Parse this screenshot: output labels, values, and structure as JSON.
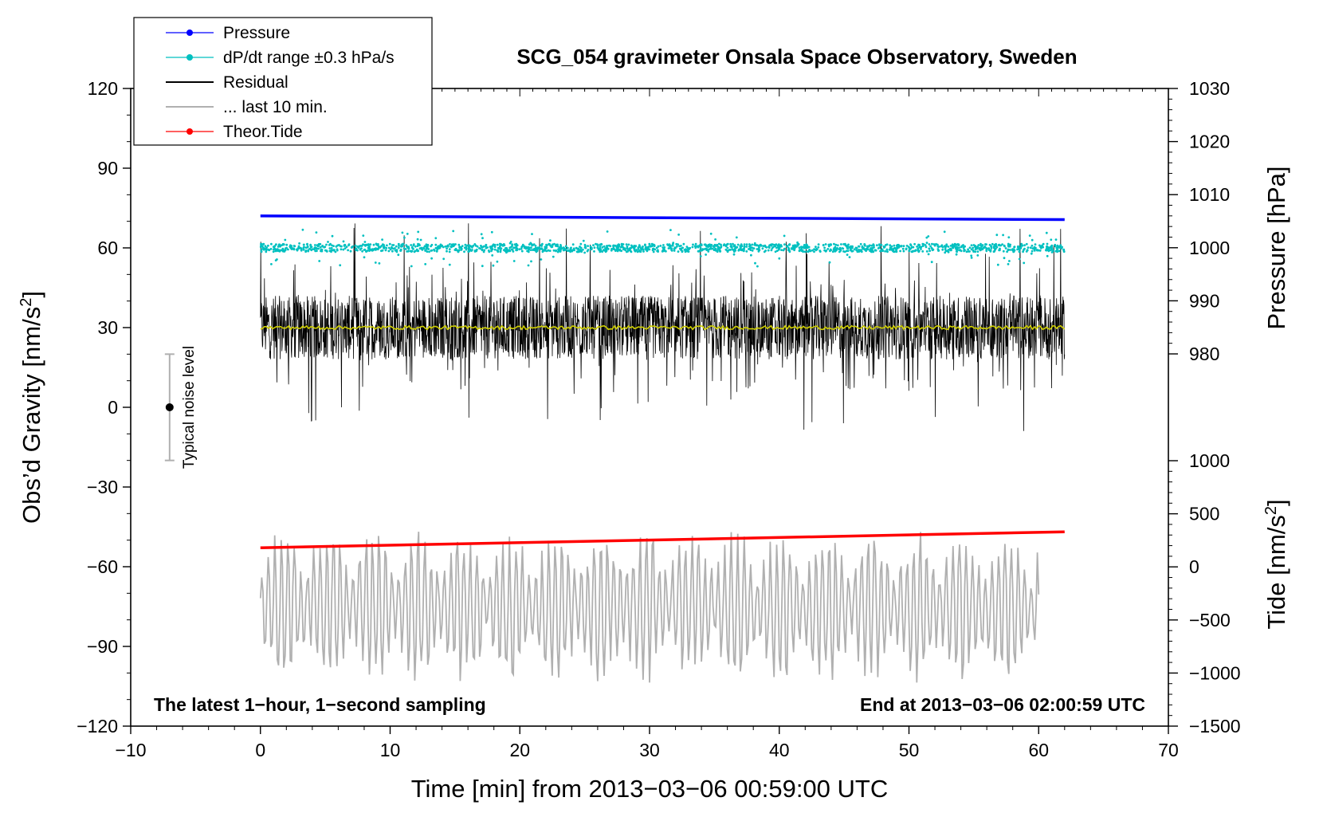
{
  "chart_data": {
    "type": "line",
    "title": "SCG_054 gravimeter Onsala Space Observatory, Sweden",
    "xlabel": "Time [min] from 2013−03−06 00:59:00 UTC",
    "ylabel_left": "Obs’d Gravity [nm/s",
    "ylabel_left_sup": "2",
    "ylabel_left_end": "]",
    "ylabel_right_pressure": "Pressure [hPa]",
    "ylabel_right_tide": "Tide [nm/s",
    "ylabel_right_tide_sup": "2",
    "ylabel_right_tide_end": "]",
    "xlim": [
      -10,
      70
    ],
    "ylim_left": [
      -120,
      120
    ],
    "x_ticks": [
      "−10",
      "0",
      "10",
      "20",
      "30",
      "40",
      "50",
      "60",
      "70"
    ],
    "x_tick_values": [
      -10,
      0,
      10,
      20,
      30,
      40,
      50,
      60,
      70
    ],
    "y_left_ticks": [
      "120",
      "90",
      "60",
      "30",
      "0",
      "−30",
      "−60",
      "−90",
      "−120"
    ],
    "y_left_tick_values": [
      120,
      90,
      60,
      30,
      0,
      -30,
      -60,
      -90,
      -120
    ],
    "pressure_axis": {
      "ticks": [
        "1030",
        "1020",
        "1010",
        "1000",
        "990",
        "980"
      ],
      "tick_values": [
        1030,
        1020,
        1010,
        1000,
        990,
        980
      ],
      "range": [
        980,
        1030
      ]
    },
    "tide_axis": {
      "ticks": [
        "1000",
        "500",
        "0",
        "−500",
        "−1000",
        "−1500"
      ],
      "tick_values": [
        1000,
        500,
        0,
        -500,
        -1000,
        -1500
      ],
      "range": [
        -1500,
        1000
      ]
    },
    "legend": [
      {
        "label": "Pressure",
        "color": "#0000ff",
        "style": "line-dot"
      },
      {
        "label": "dP/dt range ±0.3 hPa/s",
        "color": "#00c0c0",
        "style": "line-dot"
      },
      {
        "label": "Residual",
        "color": "#000000",
        "style": "line"
      },
      {
        "label": "... last 10 min.",
        "color": "#b0b0b0",
        "style": "line"
      },
      {
        "label": "Theor.Tide",
        "color": "#ff0000",
        "style": "line-dot"
      }
    ],
    "series": [
      {
        "name": "Pressure",
        "axis": "pressure",
        "color": "#0000ff",
        "x_range": [
          0,
          62
        ],
        "start": 1006.0,
        "end": 1005.3
      },
      {
        "name": "dP/dt range ±0.3 hPa/s",
        "axis": "left",
        "color": "#00c0c0",
        "x_range": [
          0,
          62
        ],
        "center": 60,
        "spread": 2.5
      },
      {
        "name": "Residual",
        "axis": "left",
        "color": "#000000",
        "x_range": [
          0,
          62
        ],
        "center": 30,
        "min": -10,
        "max": 70
      },
      {
        "name": "Residual mean",
        "axis": "left",
        "color": "#d0d000",
        "x_range": [
          0,
          62
        ],
        "value": 30
      },
      {
        "name": "... last 10 min.",
        "axis": "left",
        "color": "#b0b0b0",
        "x_range": [
          0,
          60
        ],
        "center": -75,
        "min": -112,
        "max": -37
      },
      {
        "name": "Theor.Tide",
        "axis": "tide",
        "color": "#ff0000",
        "x_range": [
          0,
          62
        ],
        "start": 180,
        "end": 330
      }
    ],
    "noise_bar": {
      "label": "Typical noise level",
      "x": -7,
      "center": 0,
      "half_range": 20
    },
    "annotations": {
      "bottom_left": "The latest 1−hour, 1−second sampling",
      "bottom_right": "End at 2013−03−06 02:00:59 UTC"
    }
  }
}
